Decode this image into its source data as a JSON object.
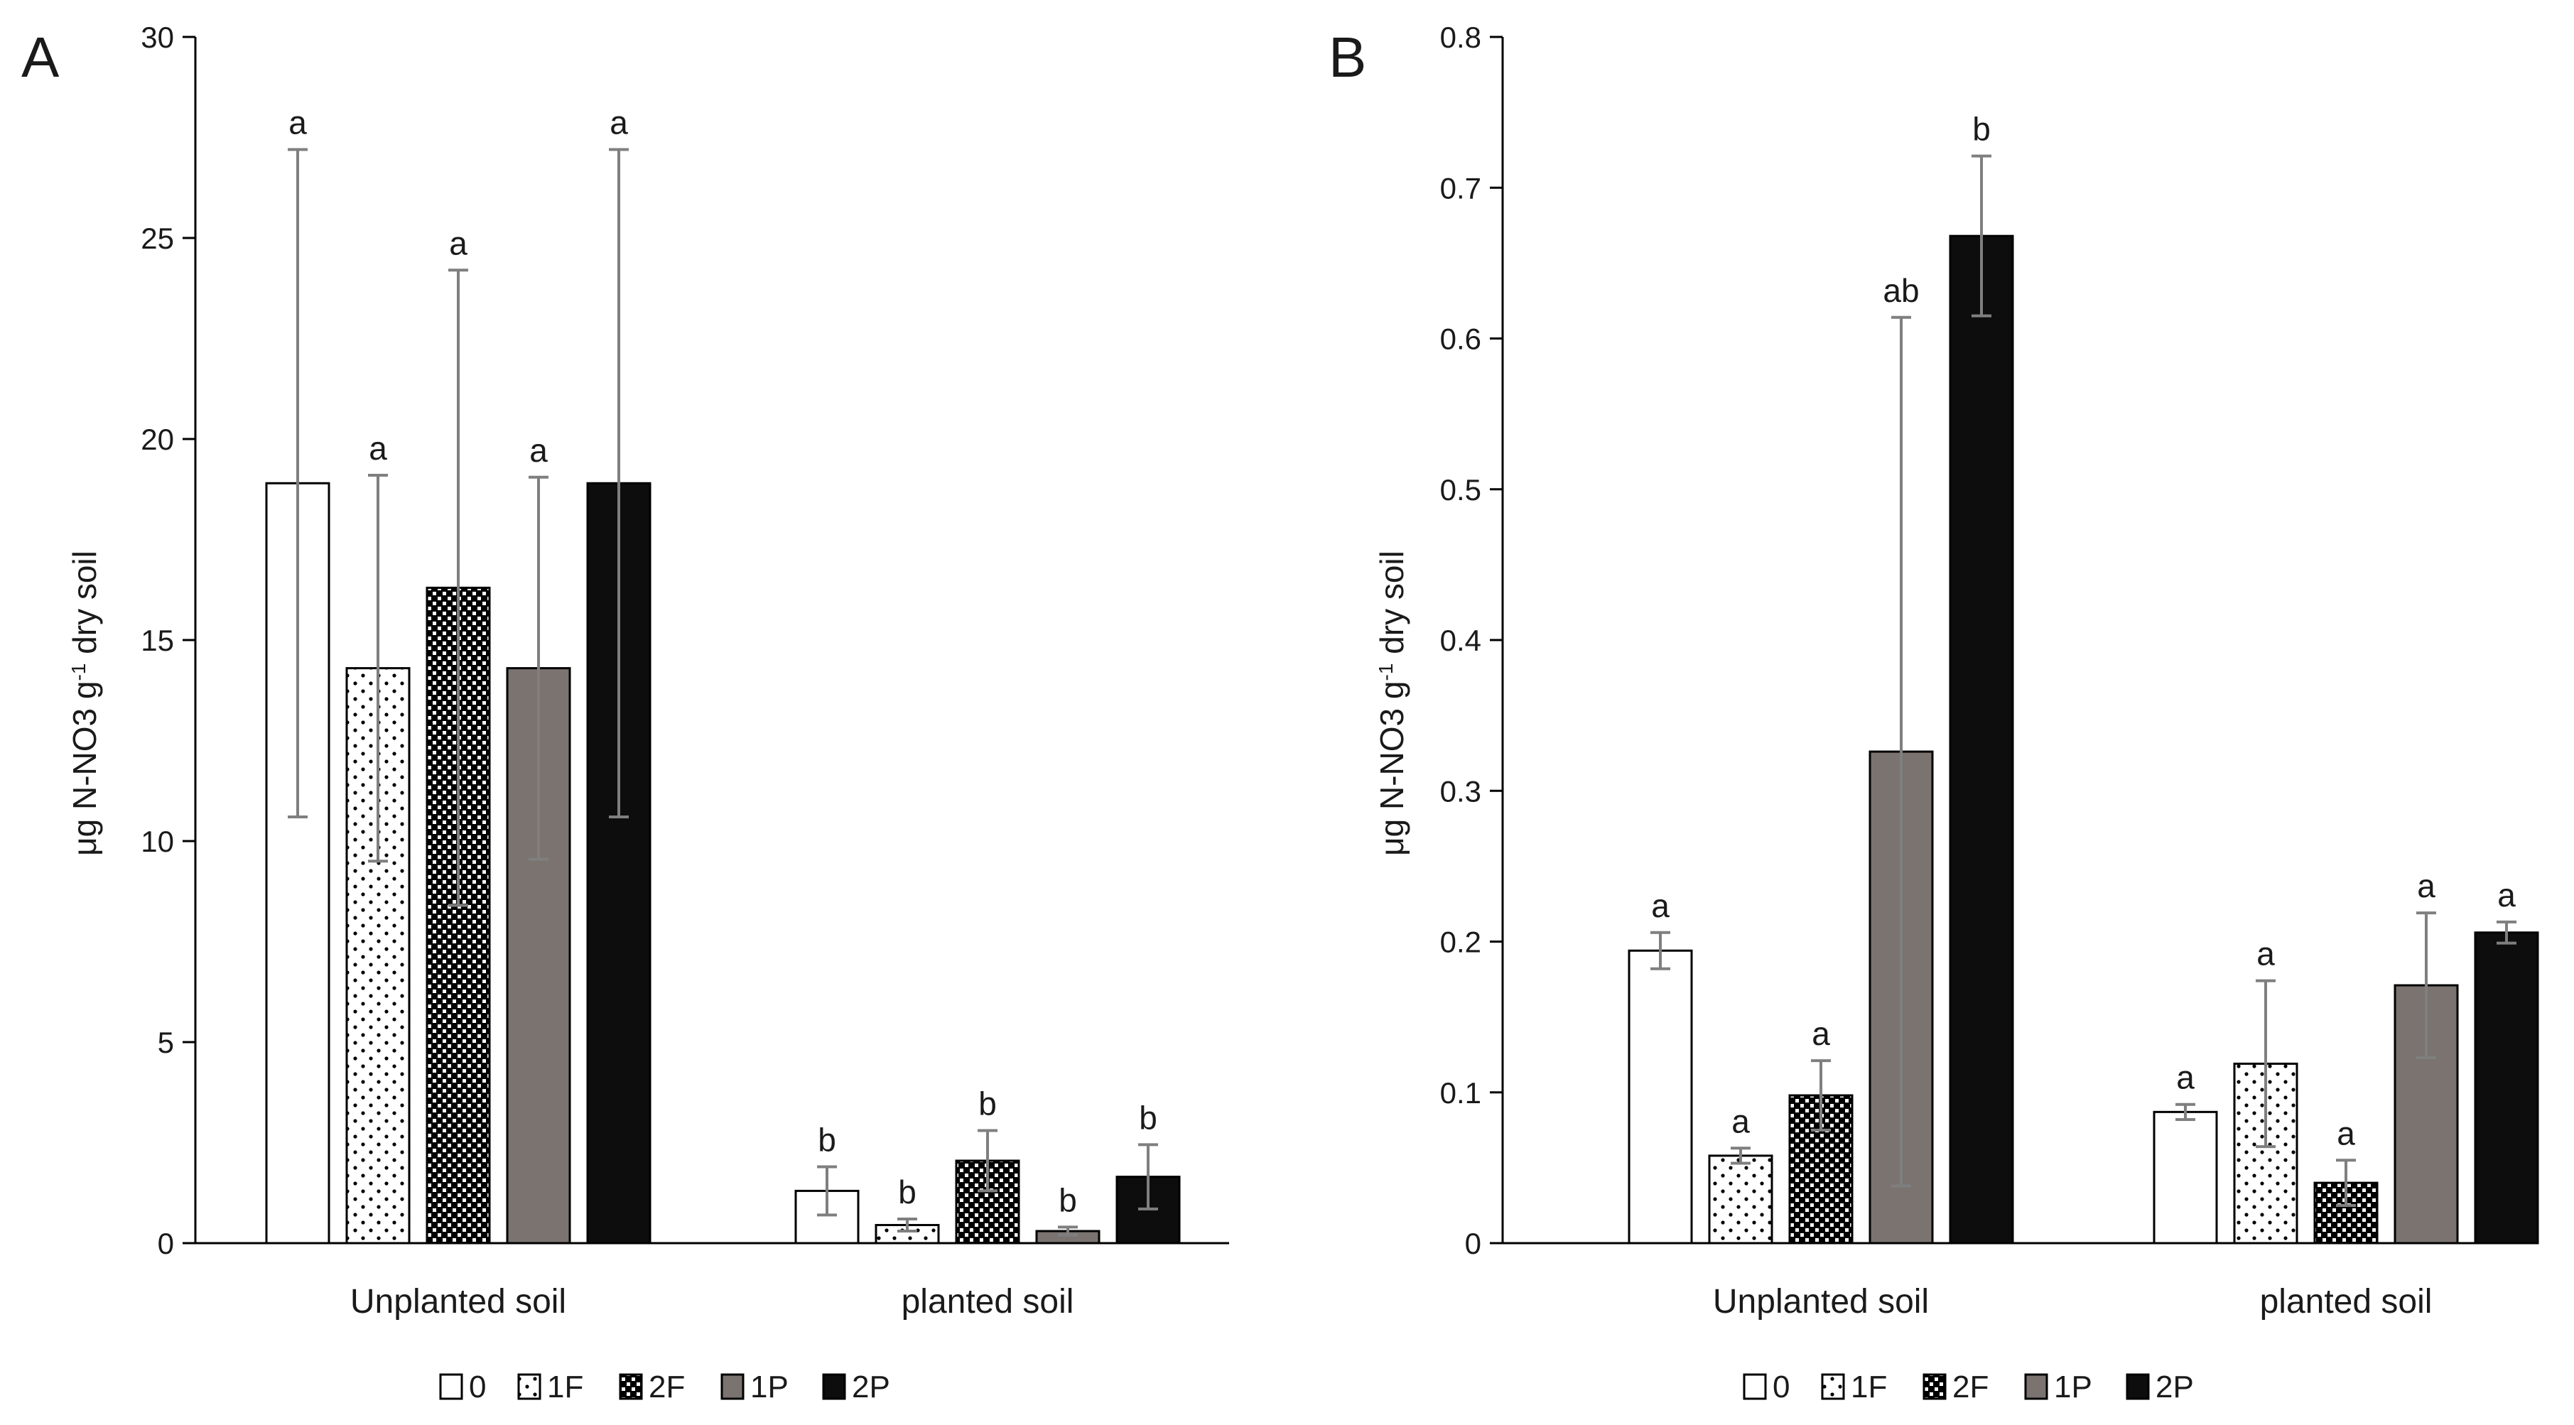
{
  "chart_data": [
    {
      "type": "bar",
      "panel": "A",
      "ylabel": "μg N-NO3 g-1 dry soil",
      "ylabel_base": "μg N-NO3 g",
      "ylabel_sup": "-1",
      "ylabel_tail": " dry soil",
      "ylim": [
        0,
        30
      ],
      "yticks": [
        "0",
        "5",
        "10",
        "15",
        "20",
        "25",
        "30"
      ],
      "categories": [
        "Unplanted soil",
        "planted soil"
      ],
      "series": [
        {
          "name": "0",
          "values": [
            18.9,
            1.3
          ],
          "errors": [
            8.3,
            0.6
          ],
          "letters": [
            "a",
            "b"
          ]
        },
        {
          "name": "1F",
          "values": [
            14.3,
            0.45
          ],
          "errors": [
            4.8,
            0.15
          ],
          "letters": [
            "a",
            "b"
          ]
        },
        {
          "name": "2F",
          "values": [
            16.3,
            2.05
          ],
          "errors": [
            7.9,
            0.75
          ],
          "letters": [
            "a",
            "b"
          ]
        },
        {
          "name": "1P",
          "values": [
            14.3,
            0.3
          ],
          "errors": [
            4.75,
            0.1
          ],
          "letters": [
            "a",
            "b"
          ]
        },
        {
          "name": "2P",
          "values": [
            18.9,
            1.65
          ],
          "errors": [
            8.3,
            0.8
          ],
          "letters": [
            "a",
            "b"
          ]
        }
      ]
    },
    {
      "type": "bar",
      "panel": "B",
      "ylabel": "μg N-NO3 g-1 dry soil",
      "ylabel_base": "μg N-NO3 g",
      "ylabel_sup": "-1",
      "ylabel_tail": " dry soil",
      "ylim": [
        0,
        0.8
      ],
      "yticks": [
        "0",
        "0.1",
        "0.2",
        "0.3",
        "0.4",
        "0.5",
        "0.6",
        "0.7",
        "0.8"
      ],
      "categories": [
        "Unplanted soil",
        "planted soil"
      ],
      "series": [
        {
          "name": "0",
          "values": [
            0.194,
            0.087
          ],
          "errors": [
            0.012,
            0.005
          ],
          "letters": [
            "a",
            "a"
          ]
        },
        {
          "name": "1F",
          "values": [
            0.058,
            0.119
          ],
          "errors": [
            0.005,
            0.055
          ],
          "letters": [
            "a",
            "a"
          ]
        },
        {
          "name": "2F",
          "values": [
            0.098,
            0.04
          ],
          "errors": [
            0.023,
            0.015
          ],
          "letters": [
            "a",
            "a"
          ]
        },
        {
          "name": "1P",
          "values": [
            0.326,
            0.171
          ],
          "errors": [
            0.288,
            0.048
          ],
          "letters": [
            "ab",
            "a"
          ]
        },
        {
          "name": "2P",
          "values": [
            0.668,
            0.206
          ],
          "errors": [
            0.053,
            0.007
          ],
          "letters": [
            "b",
            "a"
          ]
        }
      ]
    }
  ],
  "styles": {
    "fills": [
      "#ffffff",
      "dots-sparse",
      "checker",
      "#7a7370",
      "#0d0d0d"
    ],
    "stroke": "#000000",
    "axis_color": "#000000",
    "error_bar_color": "#7f7f7f"
  }
}
